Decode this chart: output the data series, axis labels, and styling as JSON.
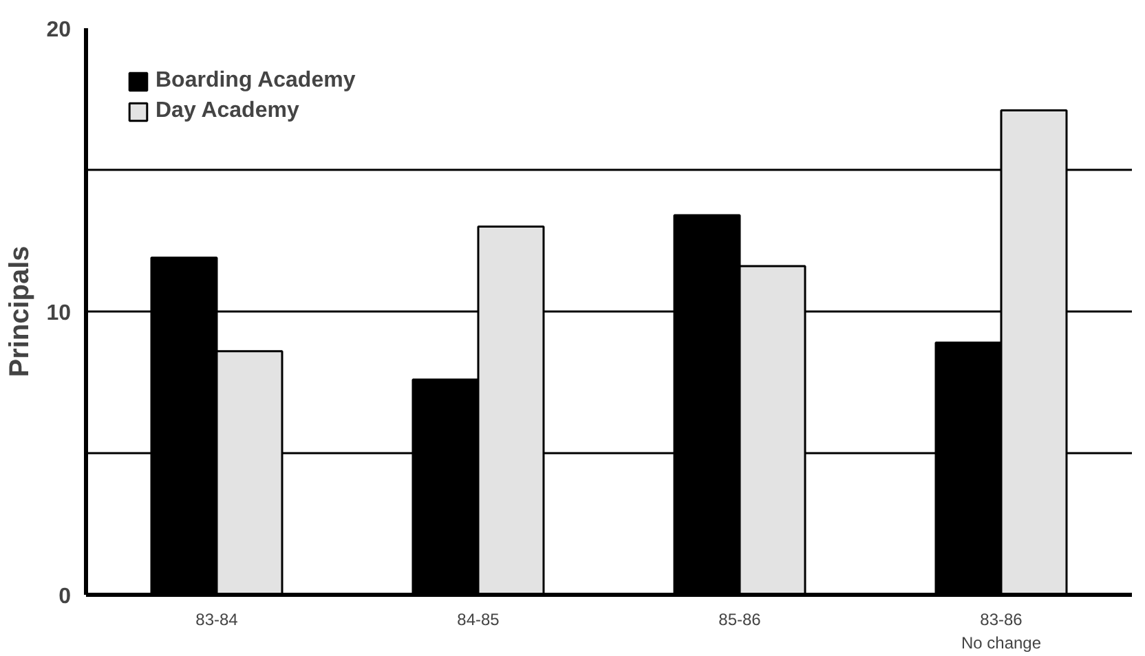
{
  "chart_data": {
    "type": "bar",
    "ylabel": "Principals",
    "categories": [
      "83-84",
      "84-85",
      "85-86",
      "83-86\nNo change"
    ],
    "series": [
      {
        "name": "Boarding Academy",
        "color": "#000000",
        "values": [
          11.9,
          7.6,
          13.4,
          8.9
        ]
      },
      {
        "name": "Day Academy",
        "color": "#e3e3e3",
        "values": [
          8.6,
          13.0,
          11.6,
          17.1
        ]
      }
    ],
    "ylim": [
      0,
      20
    ],
    "yticks": [
      0,
      {
        "value": 5,
        "label": null
      },
      10,
      {
        "value": 15,
        "label": null
      },
      20
    ],
    "grid": "y",
    "legend": "top left"
  }
}
